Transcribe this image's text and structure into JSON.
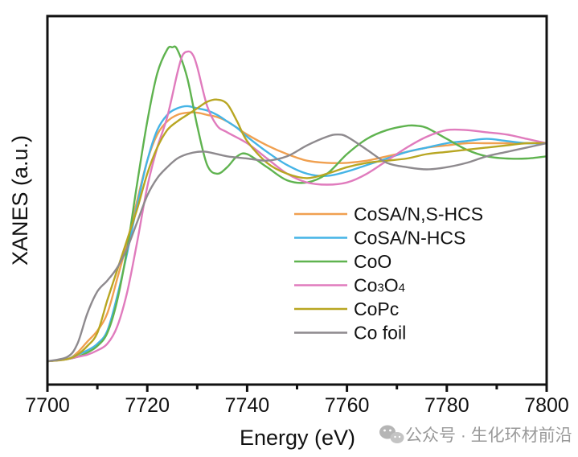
{
  "chart_data": {
    "type": "line",
    "title": "",
    "xlabel": "Energy (eV)",
    "ylabel": "XANES (a.u.)",
    "xlim": [
      7700,
      7800
    ],
    "ylim": [
      -0.107,
      1.583
    ],
    "xticks": [
      7700,
      7720,
      7740,
      7760,
      7780,
      7800
    ],
    "xtick_labels": [
      "7700",
      "7720",
      "7740",
      "7760",
      "7780",
      "7800"
    ],
    "minor_xticks": [
      7710,
      7730,
      7750,
      7770,
      7790
    ],
    "yticks_shown": false,
    "grid": false,
    "legend_position": "bottom-right",
    "series": [
      {
        "name": "CoSA/N,S-HCS",
        "color": "#f0a050",
        "x": [
          7700,
          7704,
          7706,
          7708,
          7710,
          7712,
          7714,
          7716,
          7718,
          7720,
          7722,
          7724,
          7726,
          7728,
          7730,
          7732,
          7734,
          7736,
          7738,
          7740,
          7744,
          7748,
          7752,
          7756,
          7760,
          7764,
          7768,
          7772,
          7776,
          7780,
          7784,
          7788,
          7792,
          7796,
          7800
        ],
        "y": [
          0.0,
          0.01,
          0.04,
          0.09,
          0.14,
          0.22,
          0.38,
          0.55,
          0.74,
          0.92,
          1.04,
          1.1,
          1.13,
          1.14,
          1.14,
          1.13,
          1.12,
          1.1,
          1.07,
          1.04,
          0.99,
          0.95,
          0.92,
          0.91,
          0.91,
          0.92,
          0.94,
          0.96,
          0.98,
          0.99,
          1.0,
          1.0,
          1.0,
          1.0,
          1.0
        ]
      },
      {
        "name": "CoSA/N-HCS",
        "color": "#45b4e6",
        "x": [
          7700,
          7704,
          7706,
          7708,
          7710,
          7712,
          7714,
          7716,
          7718,
          7720,
          7722,
          7724,
          7726,
          7728,
          7730,
          7732,
          7734,
          7736,
          7738,
          7740,
          7744,
          7748,
          7752,
          7756,
          7760,
          7764,
          7768,
          7772,
          7776,
          7780,
          7784,
          7788,
          7792,
          7796,
          7800
        ],
        "y": [
          0.0,
          0.01,
          0.03,
          0.05,
          0.08,
          0.14,
          0.3,
          0.5,
          0.72,
          0.92,
          1.06,
          1.13,
          1.16,
          1.17,
          1.16,
          1.15,
          1.13,
          1.1,
          1.07,
          1.03,
          0.96,
          0.9,
          0.86,
          0.85,
          0.87,
          0.9,
          0.93,
          0.96,
          0.98,
          1.0,
          1.01,
          1.02,
          1.01,
          1.0,
          1.0
        ]
      },
      {
        "name": "CoO",
        "color": "#5fb34f",
        "x": [
          7700,
          7704,
          7706,
          7708,
          7710,
          7712,
          7714,
          7716,
          7718,
          7720,
          7722,
          7724,
          7725,
          7726,
          7728,
          7730,
          7732,
          7734,
          7736,
          7738,
          7740,
          7744,
          7748,
          7752,
          7756,
          7760,
          7764,
          7768,
          7772,
          7774,
          7776,
          7780,
          7784,
          7788,
          7792,
          7796,
          7800
        ],
        "y": [
          0.0,
          0.01,
          0.02,
          0.04,
          0.07,
          0.13,
          0.28,
          0.52,
          0.82,
          1.1,
          1.32,
          1.43,
          1.44,
          1.43,
          1.3,
          1.08,
          0.9,
          0.86,
          0.89,
          0.94,
          0.95,
          0.89,
          0.83,
          0.82,
          0.86,
          0.95,
          1.02,
          1.06,
          1.08,
          1.08,
          1.07,
          1.02,
          0.97,
          0.94,
          0.93,
          0.93,
          0.94
        ]
      },
      {
        "name": "Co3O4",
        "color": "#e07bbd",
        "x": [
          7700,
          7704,
          7706,
          7708,
          7710,
          7712,
          7714,
          7716,
          7718,
          7720,
          7722,
          7724,
          7726,
          7727,
          7728,
          7729,
          7730,
          7732,
          7734,
          7736,
          7740,
          7744,
          7748,
          7752,
          7756,
          7760,
          7764,
          7768,
          7772,
          7776,
          7780,
          7784,
          7788,
          7792,
          7796,
          7800
        ],
        "y": [
          0.0,
          0.01,
          0.02,
          0.03,
          0.05,
          0.08,
          0.16,
          0.32,
          0.55,
          0.8,
          0.98,
          1.12,
          1.32,
          1.4,
          1.42,
          1.41,
          1.35,
          1.17,
          1.08,
          1.05,
          1.0,
          0.93,
          0.86,
          0.82,
          0.81,
          0.82,
          0.86,
          0.92,
          0.98,
          1.03,
          1.06,
          1.06,
          1.05,
          1.04,
          1.02,
          1.0
        ]
      },
      {
        "name": "CoPc",
        "color": "#b8a622",
        "x": [
          7700,
          7704,
          7706,
          7708,
          7710,
          7712,
          7714,
          7716,
          7718,
          7720,
          7722,
          7724,
          7726,
          7728,
          7730,
          7732,
          7734,
          7736,
          7738,
          7740,
          7744,
          7748,
          7752,
          7756,
          7760,
          7764,
          7768,
          7772,
          7776,
          7780,
          7784,
          7788,
          7792,
          7796,
          7800
        ],
        "y": [
          0.0,
          0.01,
          0.03,
          0.07,
          0.13,
          0.28,
          0.42,
          0.56,
          0.7,
          0.86,
          0.98,
          1.06,
          1.1,
          1.13,
          1.16,
          1.19,
          1.2,
          1.18,
          1.1,
          1.01,
          0.91,
          0.86,
          0.84,
          0.86,
          0.89,
          0.91,
          0.92,
          0.93,
          0.95,
          0.96,
          0.97,
          0.98,
          0.99,
          1.0,
          1.0
        ]
      },
      {
        "name": "Co foil",
        "color": "#8e8a8e",
        "x": [
          7700,
          7704,
          7706,
          7708,
          7710,
          7712,
          7714,
          7716,
          7718,
          7720,
          7722,
          7724,
          7726,
          7728,
          7730,
          7732,
          7736,
          7740,
          7744,
          7748,
          7752,
          7756,
          7758,
          7760,
          7764,
          7768,
          7772,
          7776,
          7780,
          7784,
          7788,
          7792,
          7796,
          7800
        ],
        "y": [
          0.0,
          0.02,
          0.08,
          0.22,
          0.32,
          0.37,
          0.43,
          0.52,
          0.64,
          0.76,
          0.84,
          0.89,
          0.93,
          0.95,
          0.96,
          0.96,
          0.94,
          0.93,
          0.92,
          0.94,
          0.99,
          1.03,
          1.04,
          1.03,
          0.97,
          0.91,
          0.89,
          0.88,
          0.89,
          0.91,
          0.94,
          0.96,
          0.98,
          1.0
        ]
      }
    ]
  },
  "watermark": {
    "icon": "wechat-icon",
    "text": "公众号 · 生化环材前沿"
  }
}
